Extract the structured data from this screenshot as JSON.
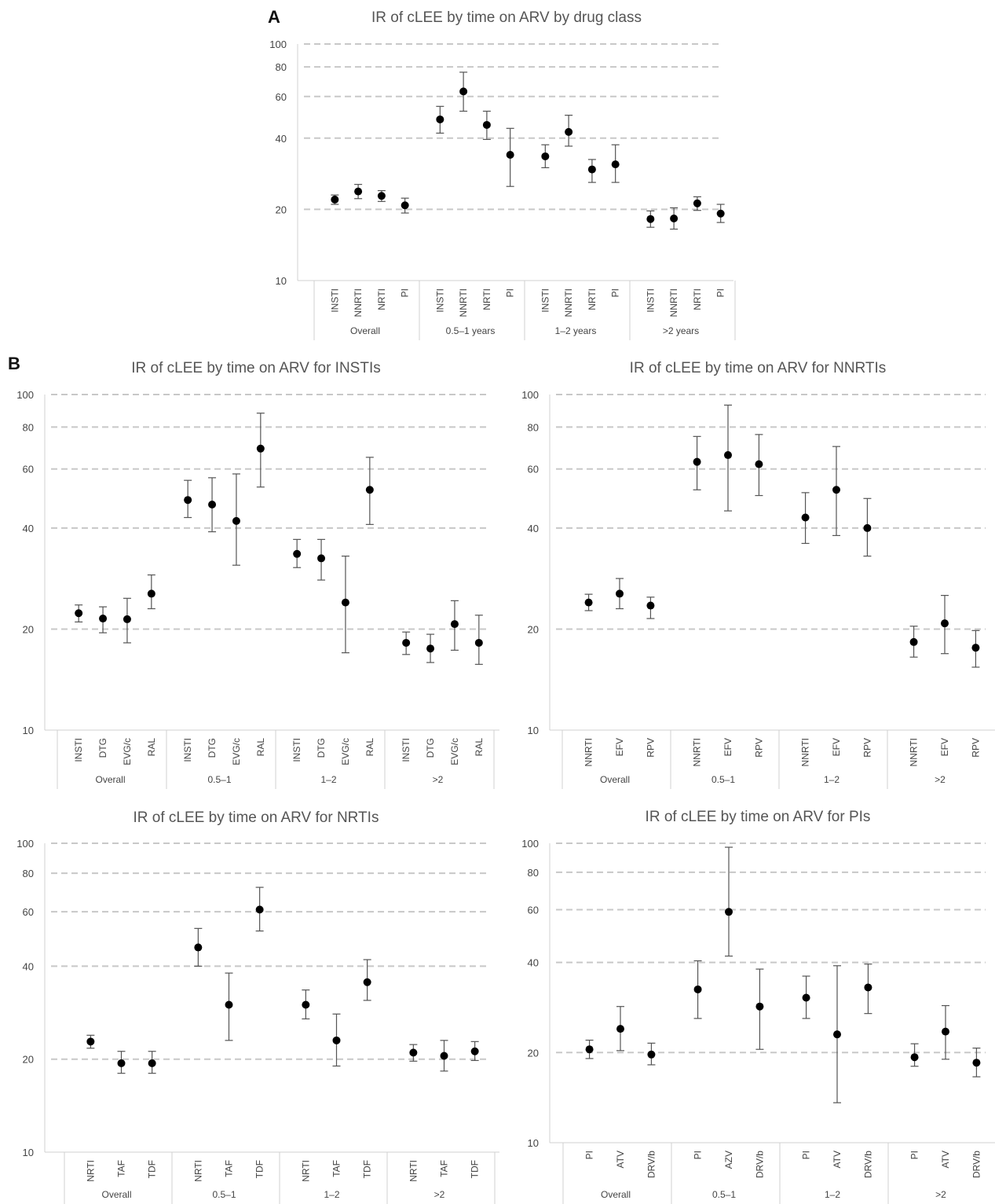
{
  "panel_letters": [
    "A",
    "B"
  ],
  "chart_data": [
    {
      "id": "A",
      "type": "scatter",
      "title": "IR of cLEE by time on ARV by drug class",
      "yscale": "log",
      "ylim": [
        10,
        100
      ],
      "yticks": [
        10,
        20,
        40,
        60,
        80,
        100
      ],
      "grid": "dashed horizontal at 20, 40, 60, 80, 100",
      "groups": [
        {
          "label": "Overall",
          "points": [
            {
              "cat": "INSTI",
              "y": 22,
              "lo": 21,
              "hi": 23
            },
            {
              "cat": "NNRTI",
              "y": 23.8,
              "lo": 22.2,
              "hi": 25.5
            },
            {
              "cat": "NRTI",
              "y": 22.8,
              "lo": 21.6,
              "hi": 24
            },
            {
              "cat": "PI",
              "y": 20.8,
              "lo": 19.3,
              "hi": 22.3
            }
          ]
        },
        {
          "label": "0.5–1  years",
          "points": [
            {
              "cat": "INSTI",
              "y": 48,
              "lo": 42,
              "hi": 54.5
            },
            {
              "cat": "NNRTI",
              "y": 63,
              "lo": 52,
              "hi": 76
            },
            {
              "cat": "NRTI",
              "y": 45.5,
              "lo": 39.5,
              "hi": 52
            },
            {
              "cat": "PI",
              "y": 34,
              "lo": 25,
              "hi": 44
            }
          ]
        },
        {
          "label": "1–2  years",
          "points": [
            {
              "cat": "INSTI",
              "y": 33.5,
              "lo": 30,
              "hi": 37.5
            },
            {
              "cat": "NNRTI",
              "y": 42.5,
              "lo": 37,
              "hi": 50
            },
            {
              "cat": "NRTI",
              "y": 29.5,
              "lo": 26,
              "hi": 32.5
            },
            {
              "cat": "PI",
              "y": 31,
              "lo": 26,
              "hi": 37.5
            }
          ]
        },
        {
          "label": ">2 years",
          "points": [
            {
              "cat": "INSTI",
              "y": 18.2,
              "lo": 16.8,
              "hi": 19.7
            },
            {
              "cat": "NNRTI",
              "y": 18.3,
              "lo": 16.5,
              "hi": 20.3
            },
            {
              "cat": "NRTI",
              "y": 21.2,
              "lo": 19.8,
              "hi": 22.6
            },
            {
              "cat": "PI",
              "y": 19.2,
              "lo": 17.6,
              "hi": 21
            }
          ]
        }
      ]
    },
    {
      "id": "B-INSTI",
      "type": "scatter",
      "title": "IR of cLEE by time on ARV for INSTIs",
      "yscale": "log",
      "ylim": [
        10,
        100
      ],
      "yticks": [
        10,
        20,
        40,
        60,
        80,
        100
      ],
      "groups": [
        {
          "label": "Overall",
          "points": [
            {
              "cat": "INSTI",
              "y": 22.3,
              "lo": 21,
              "hi": 23.6
            },
            {
              "cat": "DTG",
              "y": 21.5,
              "lo": 19.5,
              "hi": 23.3
            },
            {
              "cat": "EVG/c",
              "y": 21.4,
              "lo": 18.2,
              "hi": 24.7
            },
            {
              "cat": "RAL",
              "y": 25.5,
              "lo": 23,
              "hi": 29
            }
          ]
        },
        {
          "label": "0.5–1",
          "points": [
            {
              "cat": "INSTI",
              "y": 48.5,
              "lo": 43,
              "hi": 55.5
            },
            {
              "cat": "DTG",
              "y": 47,
              "lo": 39,
              "hi": 56.5
            },
            {
              "cat": "EVG/c",
              "y": 42,
              "lo": 31,
              "hi": 58
            },
            {
              "cat": "RAL",
              "y": 69,
              "lo": 53,
              "hi": 88
            }
          ]
        },
        {
          "label": "1–2",
          "points": [
            {
              "cat": "INSTI",
              "y": 33.5,
              "lo": 30.5,
              "hi": 37
            },
            {
              "cat": "DTG",
              "y": 32.5,
              "lo": 28,
              "hi": 37
            },
            {
              "cat": "EVG/c",
              "y": 24,
              "lo": 17,
              "hi": 33
            },
            {
              "cat": "RAL",
              "y": 52,
              "lo": 41,
              "hi": 65
            }
          ]
        },
        {
          "label": ">2",
          "points": [
            {
              "cat": "INSTI",
              "y": 18.2,
              "lo": 16.8,
              "hi": 19.6
            },
            {
              "cat": "DTG",
              "y": 17.5,
              "lo": 15.9,
              "hi": 19.3
            },
            {
              "cat": "EVG/c",
              "y": 20.7,
              "lo": 17.3,
              "hi": 24.3
            },
            {
              "cat": "RAL",
              "y": 18.2,
              "lo": 15.7,
              "hi": 22
            }
          ]
        }
      ]
    },
    {
      "id": "B-NNRTI",
      "type": "scatter",
      "title": "IR of cLEE by time on ARV for NNRTIs",
      "yscale": "log",
      "ylim": [
        10,
        100
      ],
      "yticks": [
        10,
        20,
        40,
        60,
        80,
        100
      ],
      "groups": [
        {
          "label": "Overall",
          "points": [
            {
              "cat": "NNRTI",
              "y": 24,
              "lo": 22.7,
              "hi": 25.4
            },
            {
              "cat": "EFV",
              "y": 25.5,
              "lo": 23,
              "hi": 28.3
            },
            {
              "cat": "RPV",
              "y": 23.5,
              "lo": 21.5,
              "hi": 24.9
            }
          ]
        },
        {
          "label": "0.5–1",
          "points": [
            {
              "cat": "NNRTI",
              "y": 63,
              "lo": 52,
              "hi": 75
            },
            {
              "cat": "EFV",
              "y": 66,
              "lo": 45,
              "hi": 93
            },
            {
              "cat": "RPV",
              "y": 62,
              "lo": 50,
              "hi": 76
            }
          ]
        },
        {
          "label": "1–2",
          "points": [
            {
              "cat": "NNRTI",
              "y": 43,
              "lo": 36,
              "hi": 51
            },
            {
              "cat": "EFV",
              "y": 52,
              "lo": 38,
              "hi": 70
            },
            {
              "cat": "RPV",
              "y": 40,
              "lo": 33,
              "hi": 49
            }
          ]
        },
        {
          "label": ">2",
          "points": [
            {
              "cat": "NNRTI",
              "y": 18.3,
              "lo": 16.5,
              "hi": 20.4
            },
            {
              "cat": "EFV",
              "y": 20.8,
              "lo": 16.9,
              "hi": 25.2
            },
            {
              "cat": "RPV",
              "y": 17.6,
              "lo": 15.4,
              "hi": 19.8
            }
          ]
        }
      ]
    },
    {
      "id": "B-NRTI",
      "type": "scatter",
      "title": "IR of cLEE by time on ARV for NRTIs",
      "yscale": "log",
      "ylim": [
        10,
        100
      ],
      "yticks": [
        10,
        20,
        40,
        60,
        80,
        100
      ],
      "groups": [
        {
          "label": "Overall",
          "points": [
            {
              "cat": "NRTI",
              "y": 22.8,
              "lo": 21.7,
              "hi": 23.9
            },
            {
              "cat": "TAF",
              "y": 19.4,
              "lo": 18,
              "hi": 21.2
            },
            {
              "cat": "TDF",
              "y": 19.4,
              "lo": 18,
              "hi": 21.2
            }
          ]
        },
        {
          "label": "0.5–1",
          "points": [
            {
              "cat": "NRTI",
              "y": 46,
              "lo": 40,
              "hi": 53
            },
            {
              "cat": "TAF",
              "y": 30,
              "lo": 23,
              "hi": 38
            },
            {
              "cat": "TDF",
              "y": 61,
              "lo": 52,
              "hi": 72
            }
          ]
        },
        {
          "label": "1–2",
          "points": [
            {
              "cat": "NRTI",
              "y": 30,
              "lo": 27,
              "hi": 33.5
            },
            {
              "cat": "TAF",
              "y": 23,
              "lo": 19,
              "hi": 28
            },
            {
              "cat": "TDF",
              "y": 35.5,
              "lo": 31,
              "hi": 42
            }
          ]
        },
        {
          "label": ">2",
          "points": [
            {
              "cat": "NRTI",
              "y": 21,
              "lo": 19.7,
              "hi": 22.3
            },
            {
              "cat": "TAF",
              "y": 20.5,
              "lo": 18.3,
              "hi": 23
            },
            {
              "cat": "TDF",
              "y": 21.2,
              "lo": 19.8,
              "hi": 22.8
            }
          ]
        }
      ]
    },
    {
      "id": "B-PI",
      "type": "scatter",
      "title": "IR of cLEE by time on ARV for PIs",
      "yscale": "log",
      "ylim": [
        10,
        100
      ],
      "yticks": [
        10,
        20,
        40,
        60,
        80,
        100
      ],
      "groups": [
        {
          "label": "Overall",
          "points": [
            {
              "cat": "PI",
              "y": 20.5,
              "lo": 19.1,
              "hi": 22
            },
            {
              "cat": "ATV",
              "y": 24,
              "lo": 20.3,
              "hi": 28.5
            },
            {
              "cat": "DRV/b",
              "y": 19.7,
              "lo": 18.2,
              "hi": 21.5
            }
          ]
        },
        {
          "label": "0.5–1",
          "points": [
            {
              "cat": "PI",
              "y": 32.5,
              "lo": 26,
              "hi": 40.5
            },
            {
              "cat": "AZV",
              "y": 59,
              "lo": 42,
              "hi": 97
            },
            {
              "cat": "DRV/b",
              "y": 28.5,
              "lo": 20.5,
              "hi": 38
            }
          ]
        },
        {
          "label": "1–2",
          "points": [
            {
              "cat": "PI",
              "y": 30.5,
              "lo": 26,
              "hi": 36
            },
            {
              "cat": "ATV",
              "y": 23,
              "lo": 13.6,
              "hi": 39
            },
            {
              "cat": "DRV/b",
              "y": 33,
              "lo": 27,
              "hi": 39.5
            }
          ]
        },
        {
          "label": ">2",
          "points": [
            {
              "cat": "PI",
              "y": 19.3,
              "lo": 18,
              "hi": 21.4
            },
            {
              "cat": "ATV",
              "y": 23.5,
              "lo": 19,
              "hi": 28.7
            },
            {
              "cat": "DRV/b",
              "y": 18.5,
              "lo": 16.6,
              "hi": 20.7
            }
          ]
        }
      ]
    }
  ]
}
